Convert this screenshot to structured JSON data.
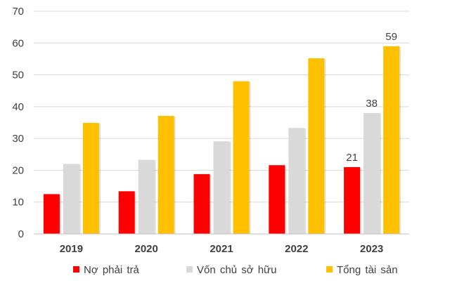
{
  "chart_data": {
    "type": "bar",
    "categories": [
      "2019",
      "2020",
      "2021",
      "2022",
      "2023"
    ],
    "series": [
      {
        "name": "Nợ phải trả",
        "values": [
          12.5,
          13.4,
          18.8,
          21.6,
          21
        ],
        "color": "#ff0000"
      },
      {
        "name": "Vốn chủ sở hữu",
        "values": [
          22,
          23.3,
          29.1,
          33.3,
          38
        ],
        "color": "#d9d9d9"
      },
      {
        "name": "Tổng tài sản",
        "values": [
          34.9,
          37.1,
          48,
          55.2,
          59
        ],
        "color": "#ffc000"
      }
    ],
    "data_labels": [
      {
        "series": 0,
        "category": 4,
        "text": "21"
      },
      {
        "series": 1,
        "category": 4,
        "text": "38"
      },
      {
        "series": 2,
        "category": 4,
        "text": "59"
      }
    ],
    "ylim": [
      0,
      70
    ],
    "yticks": [
      "0",
      "10",
      "20",
      "30",
      "40",
      "50",
      "60",
      "70"
    ],
    "grid": true,
    "legend_position": "bottom",
    "title": "",
    "xlabel": "",
    "ylabel": ""
  }
}
